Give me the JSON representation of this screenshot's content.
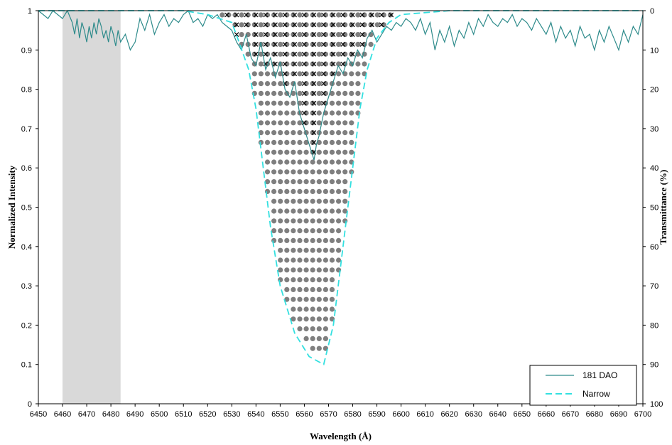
{
  "chart_data": {
    "type": "line",
    "title": "",
    "xlabel": "Wavelength (Å)",
    "ylabel": "Normalized Intensity",
    "y2label": "Transmittance (%)",
    "xlim": [
      6450,
      6700
    ],
    "ylim": [
      0,
      1
    ],
    "y2lim": [
      100,
      0
    ],
    "x_ticks": [
      6450,
      6460,
      6470,
      6480,
      6490,
      6500,
      6510,
      6520,
      6530,
      6540,
      6550,
      6560,
      6570,
      6580,
      6590,
      6600,
      6610,
      6620,
      6630,
      6640,
      6650,
      6660,
      6670,
      6680,
      6690,
      6700
    ],
    "y_ticks": [
      0,
      0.1,
      0.2,
      0.3,
      0.4,
      0.5,
      0.6,
      0.7,
      0.8,
      0.9,
      1
    ],
    "y_tick_labels": [
      "0",
      "0.1",
      "0.2",
      "0.3",
      "0.4",
      "0.5",
      "0.6",
      "0.7",
      "0.8",
      "0.9",
      "1"
    ],
    "y2_ticks": [
      0,
      10,
      20,
      30,
      40,
      50,
      60,
      70,
      80,
      90,
      100
    ],
    "grid": false,
    "legend_position": "bottom-right",
    "shaded_band": {
      "x_start": 6460,
      "x_end": 6484,
      "color": "#d9d9d9"
    },
    "series": [
      {
        "name": "181 DAO",
        "style": "solid",
        "color": "#2e8b8b",
        "x": [
          6450,
          6452,
          6454,
          6456,
          6458,
          6460,
          6462,
          6464,
          6465,
          6466,
          6467,
          6468,
          6469,
          6470,
          6471,
          6472,
          6473,
          6474,
          6475,
          6476,
          6477,
          6478,
          6479,
          6480,
          6481,
          6482,
          6483,
          6484,
          6486,
          6488,
          6490,
          6492,
          6494,
          6496,
          6498,
          6500,
          6502,
          6504,
          6506,
          6508,
          6510,
          6512,
          6514,
          6516,
          6518,
          6520,
          6522,
          6524,
          6526,
          6528,
          6530,
          6532,
          6534,
          6536,
          6538,
          6540,
          6542,
          6544,
          6546,
          6548,
          6550,
          6552,
          6554,
          6556,
          6558,
          6560,
          6562,
          6563,
          6564,
          6565,
          6566,
          6568,
          6570,
          6572,
          6574,
          6576,
          6578,
          6580,
          6582,
          6584,
          6586,
          6588,
          6590,
          6592,
          6594,
          6596,
          6598,
          6600,
          6602,
          6604,
          6606,
          6608,
          6610,
          6612,
          6614,
          6616,
          6618,
          6620,
          6622,
          6624,
          6626,
          6628,
          6630,
          6632,
          6634,
          6636,
          6638,
          6640,
          6642,
          6644,
          6646,
          6648,
          6650,
          6652,
          6654,
          6656,
          6658,
          6660,
          6662,
          6664,
          6666,
          6668,
          6670,
          6672,
          6674,
          6676,
          6678,
          6680,
          6682,
          6684,
          6686,
          6688,
          6690,
          6692,
          6694,
          6696,
          6698,
          6700
        ],
        "y": [
          1.0,
          0.99,
          0.98,
          1.0,
          0.99,
          0.98,
          1.0,
          0.97,
          0.94,
          0.98,
          0.93,
          0.97,
          0.95,
          0.92,
          0.96,
          0.93,
          0.97,
          0.94,
          0.98,
          0.96,
          0.93,
          0.95,
          0.92,
          0.96,
          0.94,
          0.91,
          0.95,
          0.92,
          0.94,
          0.9,
          0.92,
          0.98,
          0.95,
          0.99,
          0.94,
          0.97,
          0.99,
          0.96,
          0.98,
          0.97,
          0.99,
          1.0,
          0.97,
          0.98,
          0.96,
          0.99,
          0.98,
          0.99,
          0.97,
          0.96,
          0.95,
          0.92,
          0.9,
          0.94,
          0.88,
          0.86,
          0.92,
          0.85,
          0.88,
          0.83,
          0.87,
          0.8,
          0.78,
          0.82,
          0.74,
          0.7,
          0.66,
          0.64,
          0.62,
          0.66,
          0.68,
          0.74,
          0.78,
          0.82,
          0.86,
          0.84,
          0.88,
          0.86,
          0.9,
          0.88,
          0.93,
          0.95,
          0.92,
          0.94,
          0.96,
          0.95,
          0.97,
          0.96,
          0.98,
          0.97,
          0.95,
          0.98,
          0.94,
          0.97,
          0.9,
          0.95,
          0.92,
          0.96,
          0.91,
          0.95,
          0.93,
          0.97,
          0.94,
          0.98,
          0.96,
          0.99,
          0.97,
          0.96,
          0.98,
          0.97,
          0.99,
          0.96,
          0.98,
          0.97,
          0.95,
          0.98,
          0.96,
          0.94,
          0.97,
          0.92,
          0.96,
          0.93,
          0.95,
          0.91,
          0.96,
          0.93,
          0.94,
          0.9,
          0.95,
          0.92,
          0.96,
          0.93,
          0.9,
          0.95,
          0.92,
          0.96,
          0.94,
          0.99
        ]
      },
      {
        "name": "Narrow",
        "style": "dashed",
        "color": "#33e0e0",
        "x": [
          6450,
          6480,
          6510,
          6520,
          6525,
          6530,
          6533,
          6537,
          6540,
          6543,
          6546,
          6550,
          6556,
          6562,
          6568,
          6572,
          6576,
          6580,
          6583,
          6586,
          6590,
          6595,
          6600,
          6620,
          6640,
          6670,
          6700
        ],
        "y": [
          1.0,
          1.0,
          1.0,
          0.99,
          0.98,
          0.97,
          0.92,
          0.85,
          0.75,
          0.6,
          0.45,
          0.3,
          0.18,
          0.12,
          0.1,
          0.2,
          0.4,
          0.6,
          0.75,
          0.85,
          0.93,
          0.97,
          0.99,
          1.0,
          1.0,
          1.0,
          1.0
        ]
      }
    ]
  }
}
